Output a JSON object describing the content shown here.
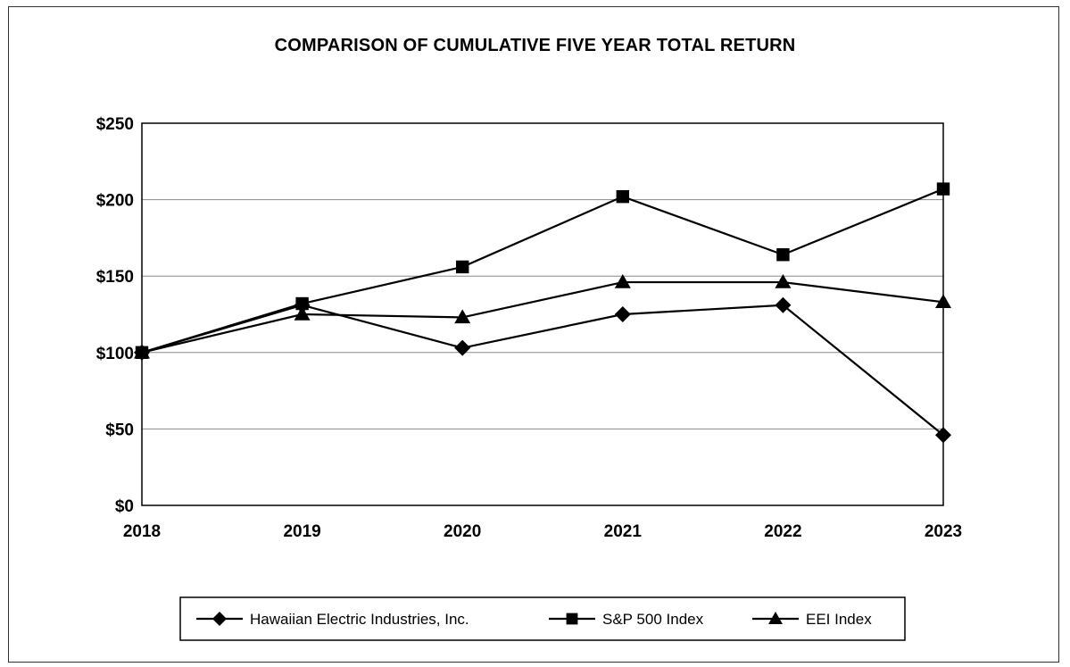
{
  "chart_data": {
    "type": "line",
    "title": "COMPARISON OF CUMULATIVE FIVE YEAR TOTAL RETURN",
    "xlabel": "",
    "ylabel": "",
    "categories": [
      "2018",
      "2019",
      "2020",
      "2021",
      "2022",
      "2023"
    ],
    "y_ticks": [
      "$0",
      "$50",
      "$100",
      "$150",
      "$200",
      "$250"
    ],
    "ylim": [
      0,
      250
    ],
    "grid": "horizontal",
    "legend_position": "bottom",
    "series": [
      {
        "name": "Hawaiian Electric Industries, Inc.",
        "marker": "diamond",
        "color": "#000000",
        "values": [
          100,
          131,
          103,
          125,
          131,
          46
        ]
      },
      {
        "name": "S&P 500 Index",
        "marker": "square",
        "color": "#000000",
        "values": [
          100,
          132,
          156,
          202,
          164,
          207
        ]
      },
      {
        "name": "EEI Index",
        "marker": "triangle",
        "color": "#000000",
        "values": [
          100,
          125,
          123,
          146,
          146,
          133
        ]
      }
    ]
  }
}
